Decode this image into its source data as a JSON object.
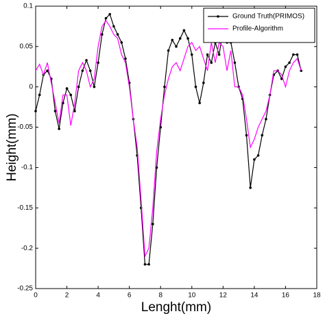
{
  "chart_data": {
    "type": "line",
    "xlabel": "Lenght(mm)",
    "ylabel": "Height(mm)",
    "x": [
      0,
      0.25,
      0.5,
      0.75,
      1,
      1.25,
      1.5,
      1.75,
      2,
      2.25,
      2.5,
      2.75,
      3,
      3.25,
      3.5,
      3.75,
      4,
      4.25,
      4.5,
      4.75,
      5,
      5.25,
      5.5,
      5.75,
      6,
      6.25,
      6.5,
      6.75,
      7,
      7.25,
      7.5,
      7.75,
      8,
      8.25,
      8.5,
      8.75,
      9,
      9.25,
      9.5,
      9.75,
      10,
      10.25,
      10.5,
      10.75,
      11,
      11.25,
      11.5,
      11.75,
      12,
      12.25,
      12.5,
      12.75,
      13,
      13.25,
      13.5,
      13.75,
      14,
      14.25,
      14.5,
      14.75,
      15,
      15.25,
      15.5,
      15.75,
      16,
      16.25,
      16.5,
      16.75,
      17
    ],
    "series": [
      {
        "name": "Ground Truth(PRIMOS)",
        "color": "#000000",
        "markers": true,
        "values": [
          -0.03,
          -0.01,
          0.015,
          0.02,
          0.01,
          -0.03,
          -0.052,
          -0.02,
          -0.002,
          -0.01,
          -0.03,
          0.0,
          0.02,
          0.033,
          0.02,
          0.0,
          0.03,
          0.065,
          0.085,
          0.09,
          0.075,
          0.065,
          0.055,
          0.035,
          0.005,
          -0.04,
          -0.085,
          -0.15,
          -0.22,
          -0.22,
          -0.17,
          -0.1,
          -0.05,
          0.0,
          0.045,
          0.058,
          0.05,
          0.06,
          0.07,
          0.06,
          0.04,
          0.0,
          -0.02,
          0.005,
          0.04,
          0.03,
          0.055,
          0.04,
          0.07,
          0.055,
          0.055,
          0.03,
          0.0,
          -0.015,
          -0.06,
          -0.125,
          -0.09,
          -0.085,
          -0.06,
          -0.04,
          -0.01,
          0.015,
          0.02,
          0.01,
          0.025,
          0.03,
          0.04,
          0.04,
          0.02
        ]
      },
      {
        "name": "Profile-Algorithm",
        "color": "#ff00ff",
        "markers": false,
        "values": [
          0.02,
          0.028,
          0.015,
          0.03,
          0.005,
          -0.02,
          -0.045,
          -0.01,
          -0.01,
          -0.048,
          -0.02,
          0.02,
          0.03,
          0.02,
          0.0,
          0.01,
          0.05,
          0.075,
          0.082,
          0.075,
          0.065,
          0.06,
          0.04,
          0.03,
          0.0,
          -0.04,
          -0.075,
          -0.14,
          -0.21,
          -0.2,
          -0.15,
          -0.08,
          -0.04,
          -0.01,
          0.01,
          0.025,
          0.03,
          0.02,
          0.035,
          0.05,
          0.055,
          0.045,
          0.05,
          0.035,
          0.02,
          0.055,
          0.03,
          0.055,
          0.05,
          0.02,
          0.045,
          0.0,
          0.0,
          -0.01,
          -0.04,
          -0.075,
          -0.065,
          -0.05,
          -0.04,
          -0.03,
          -0.01,
          0.02,
          0.02,
          0.015,
          0.0,
          0.02,
          0.03,
          0.035,
          0.02
        ]
      }
    ],
    "xlim": [
      0,
      18
    ],
    "xticks": [
      0,
      2,
      4,
      6,
      8,
      10,
      12,
      14,
      16,
      18
    ],
    "ylim": [
      -0.25,
      0.1
    ],
    "yticks": [
      -0.25,
      -0.2,
      -0.15,
      -0.1,
      -0.05,
      0,
      0.05,
      0.1
    ],
    "grid": false,
    "legend": "upper right"
  }
}
